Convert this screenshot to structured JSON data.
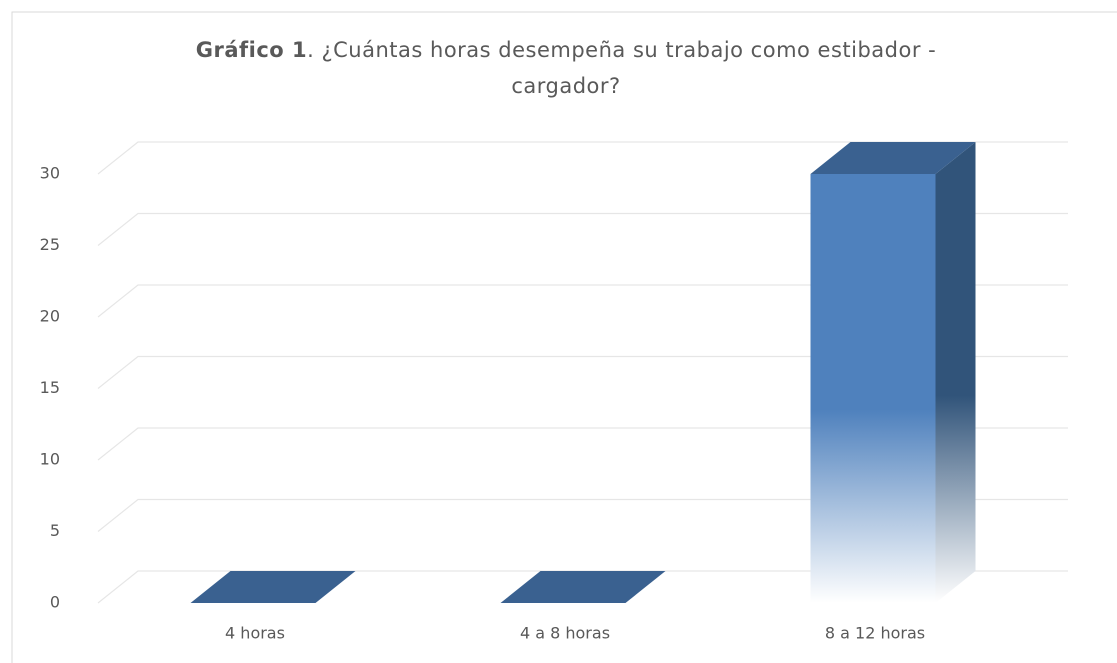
{
  "chart_data": {
    "type": "bar3d",
    "title": [
      "Gráfico 1",
      ". ¿Cuántas horas desempeña su trabajo como estibador -",
      "cargador?"
    ],
    "categories": [
      "4 horas",
      "4 a 8 horas",
      "8 a 12 horas"
    ],
    "values": [
      0,
      0,
      30
    ],
    "color": "#4f81bd",
    "ylim": [
      0,
      30
    ],
    "yticks": [
      0,
      5,
      10,
      15,
      20,
      25,
      30
    ],
    "grid": true
  }
}
